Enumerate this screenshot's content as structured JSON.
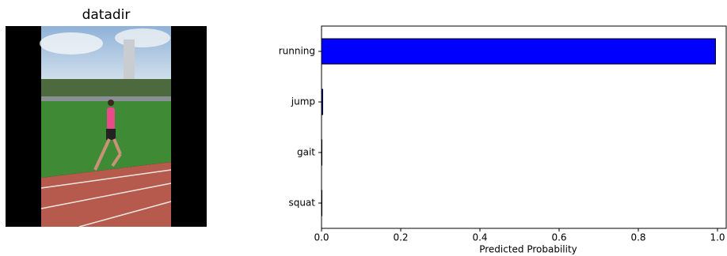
{
  "image_panel": {
    "title": "datadir"
  },
  "chart_data": {
    "type": "barh",
    "categories": [
      "running",
      "jump",
      "gait",
      "squat"
    ],
    "values": [
      0.995,
      0.003,
      0.001,
      0.001
    ],
    "color": "#0000ff",
    "xlabel": "Predicted Probability",
    "xlim": [
      0,
      1.022
    ],
    "xticks": [
      {
        "value": 0,
        "label": "0.0"
      },
      0.2,
      0.4,
      0.6,
      0.8,
      {
        "value": 1,
        "label": "1.0"
      }
    ],
    "grid": false
  }
}
